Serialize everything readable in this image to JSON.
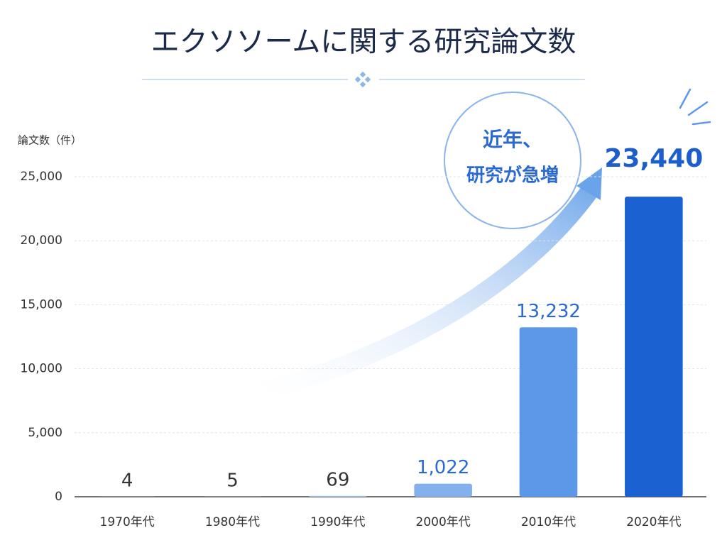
{
  "chart_data": {
    "type": "bar",
    "title": "エクソソームに関する研究論文数",
    "y_label": "論文数（件）",
    "annotation": [
      "近年、",
      "研究が急増"
    ],
    "categories": [
      "1970年代",
      "1980年代",
      "1990年代",
      "2000年代",
      "2010年代",
      "2020年代"
    ],
    "values": [
      4,
      5,
      69,
      1022,
      13232,
      23440
    ],
    "value_labels": [
      "4",
      "5",
      "69",
      "1,022",
      "13,232",
      "23,440"
    ],
    "colors": [
      "#b3cff2",
      "#adcbf1",
      "#9dc0ee",
      "#84b1ec",
      "#5d97e8",
      "#1c61d2"
    ],
    "ylim": [
      0,
      25000
    ],
    "yticks": [
      0,
      {
        "value": 5000,
        "label": "5,000"
      },
      {
        "value": 10000,
        "label": "10,000"
      },
      {
        "value": 15000,
        "label": "15,000"
      },
      {
        "value": 20000,
        "label": "20,000"
      },
      {
        "value": 25000,
        "label": "25,000"
      }
    ],
    "grid": true
  }
}
